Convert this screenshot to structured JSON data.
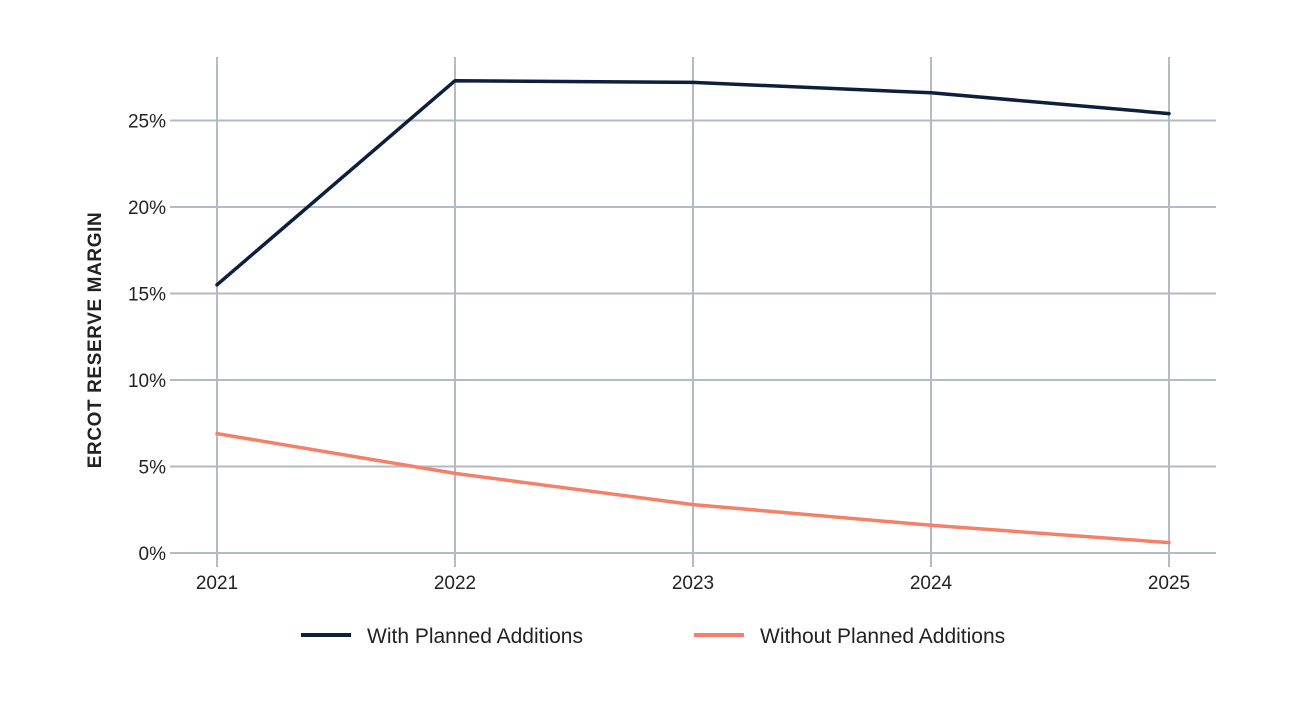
{
  "chart_data": {
    "type": "line",
    "title": "",
    "xlabel": "",
    "ylabel": "ERCOT RESERVE MARGIN",
    "x": [
      "2021",
      "2022",
      "2023",
      "2024",
      "2025"
    ],
    "yticks": [
      "0%",
      "5%",
      "10%",
      "15%",
      "20%",
      "25%"
    ],
    "ylim": [
      0,
      28
    ],
    "grid": true,
    "legend_position": "bottom-center",
    "series": [
      {
        "name": "With Planned Additions",
        "color": "#0e1f3d",
        "values": [
          15.5,
          27.3,
          27.2,
          26.6,
          25.4
        ]
      },
      {
        "name": "Without Planned Additions",
        "color": "#f5806a",
        "values": [
          6.9,
          4.6,
          2.8,
          1.6,
          0.6
        ]
      }
    ]
  }
}
